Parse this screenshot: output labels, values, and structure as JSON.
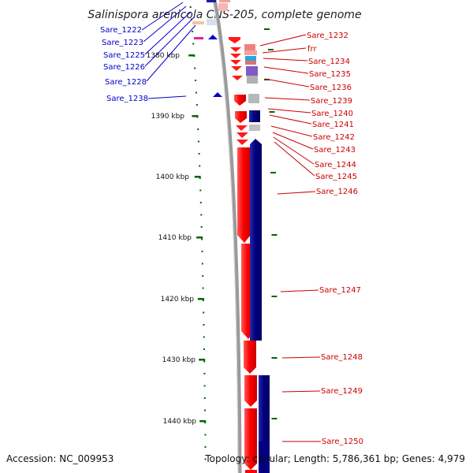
{
  "title": "Salinispora arenicola CNS-205, complete genome",
  "accession": "Accession: NC_009953",
  "topology": "Topology: circular; Length: 5,786,361 bp; Genes: 4,979",
  "colors": {
    "forward_gene": "#ff0000",
    "reverse_gene": "#000080",
    "left_label": "#0000cc",
    "right_label": "#cc0000",
    "tick": "#006400",
    "backbone": "#888888"
  },
  "scale_labels": [
    "1380 kbp",
    "1390 kbp",
    "1400 kbp",
    "1410 kbp",
    "1420 kbp",
    "1430 kbp",
    "1440 kbp"
  ],
  "left_genes": [
    "Sare_1222",
    "Sare_1223",
    "Sare_1225",
    "Sare_1226",
    "Sare_1228",
    "Sare_1238"
  ],
  "right_genes": [
    "Sare_1232",
    "frr",
    "Sare_1234",
    "Sare_1235",
    "Sare_1236",
    "Sare_1239",
    "Sare_1240",
    "Sare_1241",
    "Sare_1242",
    "Sare_1243",
    "Sare_1244",
    "Sare_1245",
    "Sare_1246",
    "Sare_1247",
    "Sare_1248",
    "Sare_1249",
    "Sare_1250"
  ]
}
